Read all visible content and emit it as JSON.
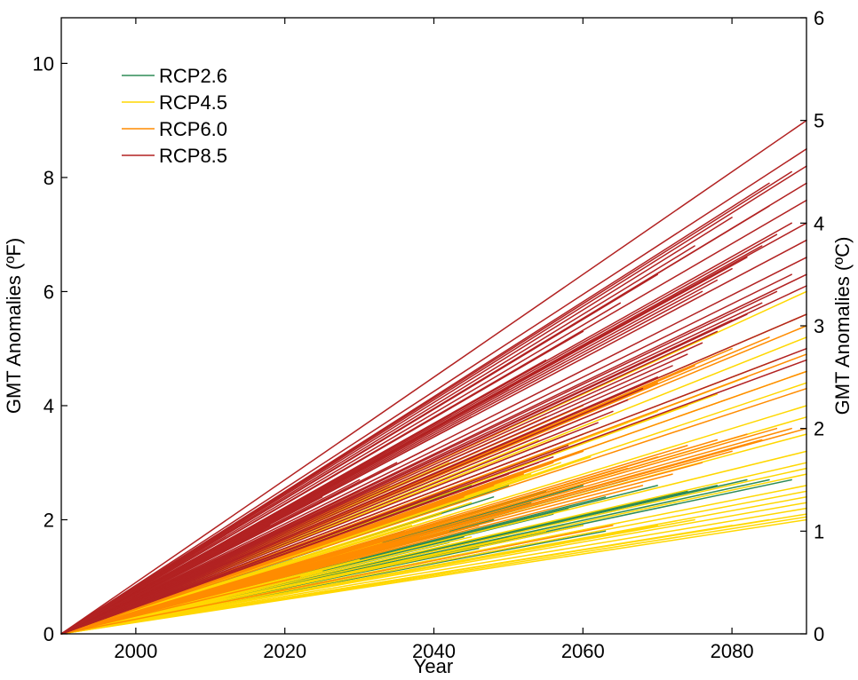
{
  "chart_data": {
    "type": "line",
    "title": "",
    "xlabel": "Year",
    "ylabel_left": "GMT Anomalies (ºF)",
    "ylabel_right": "GMT Anomalies (ºC)",
    "xlim": [
      1990,
      2090
    ],
    "ylim_left": [
      0,
      10.8
    ],
    "ylim_right": [
      0,
      6
    ],
    "x_ticks": [
      2000,
      2020,
      2040,
      2060,
      2080
    ],
    "y_ticks_left": [
      0,
      2,
      4,
      6,
      8,
      10
    ],
    "y_ticks_right": [
      0,
      1,
      2,
      3,
      4,
      5,
      6
    ],
    "grid": false,
    "legend_position": "top-left",
    "colors": {
      "RCP2.6": "#2e8b57",
      "RCP4.5": "#ffd700",
      "RCP6.0": "#ff8c00",
      "RCP8.5": "#b22222"
    },
    "series": [
      {
        "name": "RCP2.6",
        "color": "#2e8b57",
        "note_endpoints": "each line: [end_year, end_value_F]; all start at [1990, 0]",
        "endpoints": [
          [
            2017,
            1.8
          ],
          [
            2020,
            1.85
          ],
          [
            2023,
            2.0
          ],
          [
            2026,
            2.1
          ],
          [
            2030,
            2.3
          ],
          [
            2035,
            2.5
          ],
          [
            2040,
            2.7
          ],
          [
            2042,
            2.5
          ],
          [
            2045,
            2.6
          ],
          [
            2048,
            2.4
          ],
          [
            2050,
            2.6
          ],
          [
            2053,
            2.3
          ],
          [
            2055,
            2.5
          ],
          [
            2058,
            2.2
          ],
          [
            2060,
            2.6
          ],
          [
            2063,
            2.4
          ],
          [
            2066,
            2.7
          ],
          [
            2070,
            2.6
          ],
          [
            2074,
            2.5
          ],
          [
            2078,
            2.6
          ],
          [
            2082,
            2.7
          ],
          [
            2085,
            2.7
          ],
          [
            2088,
            2.7
          ],
          [
            2016,
            1.5
          ],
          [
            2019,
            1.4
          ],
          [
            2022,
            1.6
          ],
          [
            2025,
            1.5
          ],
          [
            2028,
            1.7
          ],
          [
            2032,
            1.6
          ],
          [
            2036,
            1.8
          ],
          [
            2040,
            1.9
          ],
          [
            2044,
            1.7
          ],
          [
            2048,
            2.0
          ],
          [
            2052,
            1.8
          ],
          [
            2056,
            2.1
          ],
          [
            2060,
            1.9
          ],
          [
            2063,
            1.8
          ],
          [
            2015,
            1.2
          ],
          [
            2018,
            1.1
          ],
          [
            2021,
            1.3
          ],
          [
            2024,
            1.2
          ],
          [
            2027,
            1.4
          ],
          [
            2031,
            1.3
          ],
          [
            2035,
            1.5
          ],
          [
            2038,
            1.4
          ],
          [
            2042,
            1.6
          ],
          [
            2046,
            1.5
          ],
          [
            2050,
            1.7
          ],
          [
            2054,
            1.6
          ],
          [
            2012,
            1.0
          ],
          [
            2015,
            0.9
          ],
          [
            2020,
            0.8
          ]
        ]
      },
      {
        "name": "RCP4.5",
        "color": "#ffd700",
        "endpoints": [
          [
            2022,
            2.0
          ],
          [
            2026,
            2.2
          ],
          [
            2030,
            2.5
          ],
          [
            2034,
            2.6
          ],
          [
            2038,
            2.8
          ],
          [
            2042,
            3.0
          ],
          [
            2046,
            3.2
          ],
          [
            2050,
            3.3
          ],
          [
            2054,
            3.4
          ],
          [
            2058,
            3.5
          ],
          [
            2062,
            3.6
          ],
          [
            2066,
            3.7
          ],
          [
            2070,
            3.9
          ],
          [
            2074,
            4.0
          ],
          [
            2078,
            4.2
          ],
          [
            2082,
            4.5
          ],
          [
            2086,
            4.8
          ],
          [
            2090,
            5.2
          ],
          [
            2090,
            5.6
          ],
          [
            2090,
            6.0
          ],
          [
            2090,
            4.6
          ],
          [
            2090,
            4.4
          ],
          [
            2090,
            4.0
          ],
          [
            2090,
            3.8
          ],
          [
            2090,
            3.5
          ],
          [
            2090,
            3.2
          ],
          [
            2090,
            3.0
          ],
          [
            2090,
            2.9
          ],
          [
            2090,
            2.8
          ],
          [
            2090,
            2.6
          ],
          [
            2090,
            2.5
          ],
          [
            2090,
            2.4
          ],
          [
            2090,
            2.3
          ],
          [
            2090,
            2.2
          ],
          [
            2090,
            2.1
          ],
          [
            2090,
            2.0
          ],
          [
            2090,
            2.05
          ],
          [
            2085,
            2.0
          ],
          [
            2080,
            1.9
          ],
          [
            2075,
            2.0
          ],
          [
            2070,
            1.9
          ],
          [
            2065,
            1.95
          ],
          [
            2060,
            1.9
          ],
          [
            2055,
            1.8
          ],
          [
            2050,
            1.8
          ],
          [
            2045,
            1.7
          ],
          [
            2040,
            1.6
          ],
          [
            2035,
            1.5
          ],
          [
            2030,
            1.3
          ],
          [
            2025,
            1.1
          ],
          [
            2020,
            0.9
          ],
          [
            2028,
            1.4
          ],
          [
            2033,
            1.6
          ],
          [
            2037,
            1.9
          ],
          [
            2041,
            2.1
          ],
          [
            2045,
            2.3
          ],
          [
            2049,
            2.6
          ],
          [
            2053,
            2.8
          ],
          [
            2057,
            3.0
          ],
          [
            2061,
            3.1
          ]
        ]
      },
      {
        "name": "RCP6.0",
        "color": "#ff8c00",
        "endpoints": [
          [
            2025,
            2.2
          ],
          [
            2030,
            2.5
          ],
          [
            2035,
            2.7
          ],
          [
            2040,
            3.0
          ],
          [
            2045,
            3.3
          ],
          [
            2050,
            3.6
          ],
          [
            2055,
            3.8
          ],
          [
            2060,
            4.0
          ],
          [
            2065,
            4.2
          ],
          [
            2070,
            4.4
          ],
          [
            2075,
            4.7
          ],
          [
            2080,
            5.0
          ],
          [
            2085,
            5.2
          ],
          [
            2090,
            5.4
          ],
          [
            2090,
            4.9
          ],
          [
            2090,
            4.6
          ],
          [
            2090,
            4.3
          ],
          [
            2090,
            3.6
          ],
          [
            2086,
            3.6
          ],
          [
            2082,
            3.5
          ],
          [
            2078,
            3.4
          ],
          [
            2074,
            3.3
          ],
          [
            2070,
            3.1
          ],
          [
            2066,
            2.9
          ],
          [
            2062,
            2.7
          ],
          [
            2058,
            2.5
          ],
          [
            2054,
            2.3
          ],
          [
            2050,
            2.1
          ],
          [
            2046,
            1.9
          ],
          [
            2042,
            1.8
          ],
          [
            2038,
            1.7
          ],
          [
            2034,
            1.6
          ],
          [
            2030,
            1.4
          ],
          [
            2026,
            1.2
          ],
          [
            2022,
            1.0
          ],
          [
            2064,
            1.9
          ],
          [
            2068,
            2.6
          ],
          [
            2072,
            2.8
          ],
          [
            2076,
            3.0
          ],
          [
            2080,
            3.2
          ],
          [
            2084,
            3.4
          ],
          [
            2088,
            3.6
          ],
          [
            2060,
            3.2
          ],
          [
            2056,
            3.0
          ],
          [
            2052,
            2.8
          ],
          [
            2048,
            2.6
          ],
          [
            2044,
            2.4
          ]
        ]
      },
      {
        "name": "RCP8.5",
        "color": "#b22222",
        "endpoints": [
          [
            2018,
            1.9
          ],
          [
            2025,
            2.4
          ],
          [
            2030,
            2.7
          ],
          [
            2035,
            3.0
          ],
          [
            2040,
            3.3
          ],
          [
            2045,
            3.8
          ],
          [
            2050,
            4.3
          ],
          [
            2055,
            4.8
          ],
          [
            2060,
            5.3
          ],
          [
            2065,
            5.8
          ],
          [
            2070,
            6.3
          ],
          [
            2075,
            6.8
          ],
          [
            2080,
            7.3
          ],
          [
            2085,
            7.9
          ],
          [
            2090,
            9.0
          ],
          [
            2090,
            8.5
          ],
          [
            2090,
            8.2
          ],
          [
            2090,
            7.9
          ],
          [
            2088,
            8.1
          ],
          [
            2085,
            7.5
          ],
          [
            2090,
            7.2
          ],
          [
            2088,
            7.2
          ],
          [
            2086,
            7.0
          ],
          [
            2084,
            6.8
          ],
          [
            2082,
            6.6
          ],
          [
            2080,
            6.4
          ],
          [
            2078,
            6.2
          ],
          [
            2076,
            6.0
          ],
          [
            2090,
            6.6
          ],
          [
            2090,
            6.3
          ],
          [
            2090,
            6.1
          ],
          [
            2088,
            6.3
          ],
          [
            2086,
            6.0
          ],
          [
            2084,
            5.8
          ],
          [
            2082,
            5.6
          ],
          [
            2080,
            5.5
          ],
          [
            2078,
            5.3
          ],
          [
            2076,
            5.1
          ],
          [
            2074,
            4.9
          ],
          [
            2072,
            4.7
          ],
          [
            2070,
            4.5
          ],
          [
            2068,
            4.3
          ],
          [
            2066,
            4.1
          ],
          [
            2064,
            3.9
          ],
          [
            2062,
            3.7
          ],
          [
            2060,
            3.5
          ],
          [
            2058,
            3.3
          ],
          [
            2056,
            3.1
          ],
          [
            2054,
            3.0
          ],
          [
            2052,
            2.9
          ],
          [
            2050,
            2.8
          ],
          [
            2090,
            5.0
          ],
          [
            2090,
            4.8
          ],
          [
            2090,
            5.6
          ],
          [
            2090,
            6.9
          ],
          [
            2090,
            7.6
          ]
        ]
      }
    ]
  }
}
